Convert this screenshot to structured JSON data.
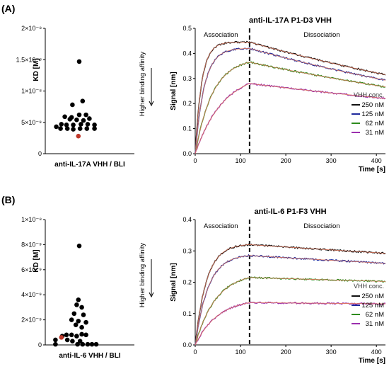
{
  "chart_data": [
    {
      "panel": "A",
      "type": "scatter",
      "title": "",
      "ylabel": "KD [M]",
      "xlabel": "anti-IL-17A VHH / BLI",
      "yticks": [
        "0",
        "5×10⁻⁹",
        "1×10⁻⁸",
        "1.5×10⁻⁸",
        "2×10⁻⁸"
      ],
      "ylim": [
        0,
        2e-08
      ],
      "annotation": "Higher binding affinity",
      "highlight_color": "#c0392b",
      "points": [
        {
          "x": 0.5,
          "y": 1.47e-08
        },
        {
          "x": 0.58,
          "y": 8.4e-09
        },
        {
          "x": 0.34,
          "y": 7.8e-09
        },
        {
          "x": 0.5,
          "y": 6.2e-09
        },
        {
          "x": 0.66,
          "y": 6.2e-09
        },
        {
          "x": 0.16,
          "y": 5.9e-09
        },
        {
          "x": 0.32,
          "y": 5.8e-09
        },
        {
          "x": 0.74,
          "y": 5.6e-09
        },
        {
          "x": 0.28,
          "y": 5.5e-09
        },
        {
          "x": 0.44,
          "y": 5.4e-09
        },
        {
          "x": 0.6,
          "y": 5.3e-09
        },
        {
          "x": 0.08,
          "y": 4.7e-09
        },
        {
          "x": 0.2,
          "y": 4.6e-09
        },
        {
          "x": 0.36,
          "y": 4.6e-09
        },
        {
          "x": 0.54,
          "y": 4.7e-09
        },
        {
          "x": 0.7,
          "y": 4.7e-09
        },
        {
          "x": 0.86,
          "y": 4.6e-09
        },
        {
          "x": -0.04,
          "y": 4.3e-09
        },
        {
          "x": 0.06,
          "y": 4e-09
        },
        {
          "x": 0.22,
          "y": 4e-09
        },
        {
          "x": 0.36,
          "y": 3.9e-09
        },
        {
          "x": 0.52,
          "y": 4e-09
        },
        {
          "x": 0.68,
          "y": 4e-09
        },
        {
          "x": 0.86,
          "y": 4e-09
        },
        {
          "x": 0.48,
          "y": 2.8e-09,
          "highlight": true
        }
      ]
    },
    {
      "panel": "A",
      "type": "line",
      "title": "anti-IL-17A P1-D3 VHH",
      "xlabel": "Time [s]",
      "ylabel": "Signal [nm]",
      "xlim": [
        0,
        420
      ],
      "ylim": [
        0,
        0.5
      ],
      "xticks": [
        0,
        100,
        200,
        300,
        400
      ],
      "yticks": [
        0.0,
        0.1,
        0.2,
        0.3,
        0.4,
        0.5
      ],
      "phase_labels": [
        "Association",
        "Dissociation"
      ],
      "switch_time": 120,
      "legend_title": "VHH conc.",
      "legend_position": "bottom-right",
      "fit_color": "#e07a5f",
      "series": [
        {
          "name": "250 nM",
          "color": "#111111",
          "peak": 0.445,
          "kon": 0.07,
          "koff": 0.00115
        },
        {
          "name": "125 nM",
          "color": "#1f2a9c",
          "peak": 0.42,
          "kon": 0.05,
          "koff": 0.0012
        },
        {
          "name": "62 nM",
          "color": "#2e8b1e",
          "peak": 0.365,
          "kon": 0.026,
          "koff": 0.00105
        },
        {
          "name": "31 nM",
          "color": "#9b2fae",
          "peak": 0.28,
          "kon": 0.016,
          "koff": 0.0008
        }
      ]
    },
    {
      "panel": "B",
      "type": "scatter",
      "title": "",
      "ylabel": "KD [M]",
      "xlabel": "anti-IL-6 VHH / BLI",
      "yticks": [
        "0",
        "2×10⁻⁹",
        "4×10⁻⁹",
        "6×10⁻⁹",
        "8×10⁻⁹",
        "1×10⁻⁸"
      ],
      "ylim": [
        0,
        1e-08
      ],
      "annotation": "Higher binding affinity",
      "highlight_color": "#c0392b",
      "points": [
        {
          "x": 0.5,
          "y": 7.9e-09
        },
        {
          "x": 0.48,
          "y": 3.6e-09
        },
        {
          "x": 0.44,
          "y": 3.2e-09
        },
        {
          "x": 0.56,
          "y": 3e-09
        },
        {
          "x": 0.38,
          "y": 2.5e-09
        },
        {
          "x": 0.6,
          "y": 2.4e-09
        },
        {
          "x": 0.32,
          "y": 2e-09
        },
        {
          "x": 0.48,
          "y": 1.9e-09
        },
        {
          "x": 0.66,
          "y": 1.8e-09
        },
        {
          "x": 0.42,
          "y": 1.6e-09
        },
        {
          "x": 0.56,
          "y": 1.4e-09
        },
        {
          "x": 0.2,
          "y": 8e-10
        },
        {
          "x": 0.32,
          "y": 8e-10
        },
        {
          "x": 0.56,
          "y": 8.5e-10
        },
        {
          "x": 0.66,
          "y": 8e-10
        },
        {
          "x": 0.44,
          "y": 7e-10
        },
        {
          "x": 0.1,
          "y": 7e-10
        },
        {
          "x": -0.06,
          "y": 4e-10
        },
        {
          "x": 0.22,
          "y": 4e-10
        },
        {
          "x": 0.34,
          "y": 3e-10
        },
        {
          "x": 0.52,
          "y": 3e-10
        },
        {
          "x": -0.06,
          "y": 5e-11
        },
        {
          "x": 0.46,
          "y": 5e-11
        },
        {
          "x": 0.58,
          "y": 5e-11
        },
        {
          "x": 0.7,
          "y": 5e-11
        },
        {
          "x": 0.8,
          "y": 5e-11
        },
        {
          "x": 0.9,
          "y": 5e-11
        },
        {
          "x": 0.08,
          "y": 6e-10,
          "highlight": true
        }
      ]
    },
    {
      "panel": "B",
      "type": "line",
      "title": "anti-IL-6 P1-F3 VHH",
      "xlabel": "Time [s]",
      "ylabel": "Signal [nm]",
      "xlim": [
        0,
        420
      ],
      "ylim": [
        0,
        0.4
      ],
      "xticks": [
        0,
        100,
        200,
        300,
        400
      ],
      "yticks": [
        0.0,
        0.1,
        0.2,
        0.3,
        0.4
      ],
      "phase_labels": [
        "Association",
        "Dissociation"
      ],
      "switch_time": 120,
      "legend_title": "VHH conc.",
      "legend_position": "bottom-right",
      "fit_color": "#e07a5f",
      "series": [
        {
          "name": "250 nM",
          "color": "#111111",
          "peak": 0.32,
          "kon": 0.04,
          "koff": 0.0003
        },
        {
          "name": "125 nM",
          "color": "#1f2a9c",
          "peak": 0.285,
          "kon": 0.035,
          "koff": 0.0003
        },
        {
          "name": "62 nM",
          "color": "#2e8b1e",
          "peak": 0.215,
          "kon": 0.022,
          "koff": 0.0002
        },
        {
          "name": "31 nM",
          "color": "#9b2fae",
          "peak": 0.135,
          "kon": 0.02,
          "koff": 0.0001
        }
      ]
    }
  ],
  "panel_labels": [
    "(A)",
    "(B)"
  ]
}
